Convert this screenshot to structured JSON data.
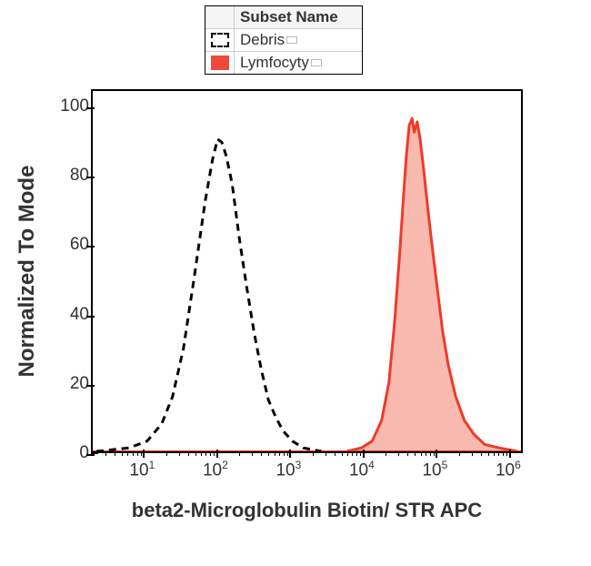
{
  "legend": {
    "header": "Subset Name",
    "items": [
      {
        "label": "Debris",
        "fill": "#ffffff",
        "stroke": "#000000",
        "dash": "6 5"
      },
      {
        "label": "Lymfocyty",
        "fill": "#ef4b3d",
        "stroke": "#ef4b3d",
        "dash": null
      }
    ]
  },
  "chart": {
    "type": "histogram",
    "background_color": "#ffffff",
    "plot_border_color": "#000000",
    "ylabel": "Normalized To Mode",
    "xlabel": "beta2-Microglobulin Biotin/ STR APC",
    "label_fontsize": 24,
    "tick_fontsize": 19,
    "x_scale": "log10",
    "x_range_exp": [
      0.3,
      6.2
    ],
    "y_range": [
      0,
      105
    ],
    "y_ticks": [
      0,
      20,
      40,
      60,
      80,
      100
    ],
    "x_tick_exp": [
      1,
      2,
      3,
      4,
      5,
      6
    ],
    "series": [
      {
        "name": "Debris",
        "color_stroke": "#000000",
        "color_fill": "none",
        "stroke_width": 3,
        "dash": "8 6",
        "points_exp_y": [
          [
            0.35,
            0
          ],
          [
            0.8,
            1
          ],
          [
            1.05,
            3
          ],
          [
            1.25,
            8
          ],
          [
            1.4,
            16
          ],
          [
            1.55,
            30
          ],
          [
            1.7,
            51
          ],
          [
            1.85,
            73
          ],
          [
            1.95,
            85
          ],
          [
            2.02,
            91
          ],
          [
            2.08,
            90
          ],
          [
            2.14,
            86
          ],
          [
            2.22,
            78
          ],
          [
            2.32,
            62
          ],
          [
            2.42,
            48
          ],
          [
            2.52,
            35
          ],
          [
            2.62,
            24
          ],
          [
            2.72,
            15
          ],
          [
            2.82,
            10
          ],
          [
            2.92,
            6
          ],
          [
            3.05,
            3
          ],
          [
            3.2,
            1
          ],
          [
            3.45,
            0
          ]
        ]
      },
      {
        "name": "Lymfocyty",
        "color_stroke": "#ef3a2a",
        "color_fill": "#f6a193",
        "stroke_width": 3,
        "dash": null,
        "points_exp_y": [
          [
            3.8,
            0
          ],
          [
            4.0,
            1
          ],
          [
            4.15,
            3
          ],
          [
            4.28,
            9
          ],
          [
            4.38,
            20
          ],
          [
            4.46,
            38
          ],
          [
            4.53,
            58
          ],
          [
            4.58,
            74
          ],
          [
            4.62,
            86
          ],
          [
            4.66,
            95
          ],
          [
            4.7,
            97
          ],
          [
            4.73,
            93
          ],
          [
            4.77,
            96
          ],
          [
            4.81,
            91
          ],
          [
            4.86,
            82
          ],
          [
            4.92,
            70
          ],
          [
            4.98,
            59
          ],
          [
            5.05,
            47
          ],
          [
            5.12,
            35
          ],
          [
            5.2,
            25
          ],
          [
            5.3,
            16
          ],
          [
            5.42,
            9
          ],
          [
            5.55,
            5
          ],
          [
            5.7,
            2
          ],
          [
            5.9,
            1
          ],
          [
            6.15,
            0
          ]
        ]
      }
    ]
  }
}
